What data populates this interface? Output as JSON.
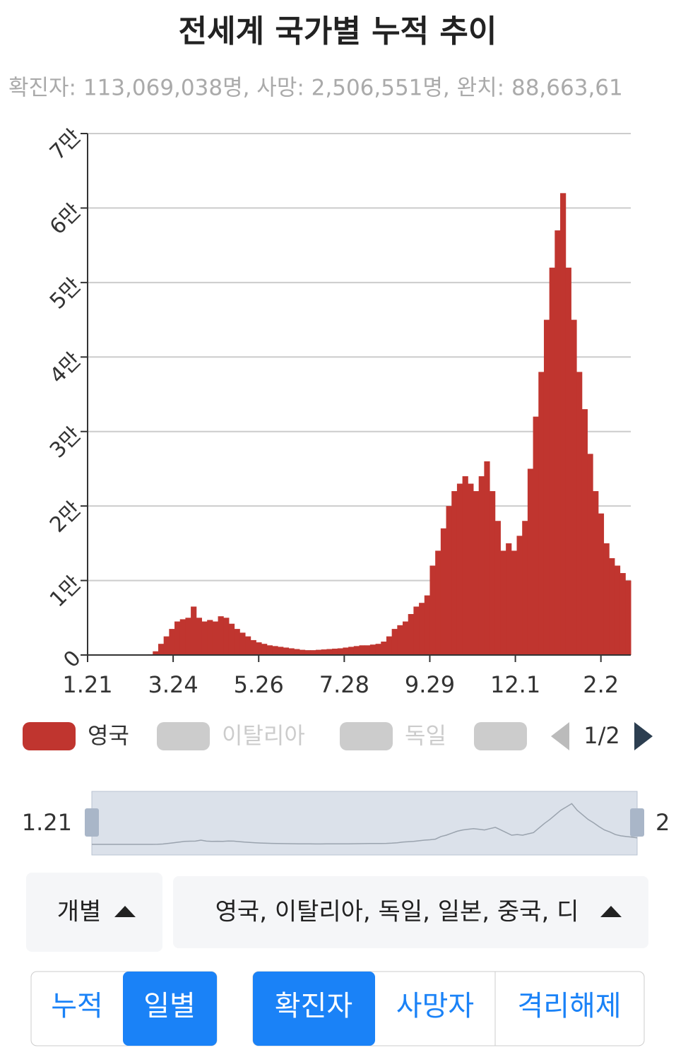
{
  "chart_data": {
    "type": "bar",
    "title": "전세계 국가별 누적 추이",
    "subtitle": "확진자: 113,069,038명, 사망: 2,506,551명, 완치: 88,663,61",
    "x": [
      0,
      4,
      8,
      12,
      16,
      20,
      24,
      28,
      32,
      36,
      40,
      44,
      48,
      52,
      56,
      60,
      64,
      68,
      72,
      76,
      80,
      84,
      88,
      92,
      96,
      100,
      104,
      108,
      112,
      116,
      120,
      124,
      128,
      132,
      136,
      140,
      144,
      148,
      152,
      156,
      160,
      164,
      168,
      172,
      176,
      180,
      184,
      188,
      192,
      196,
      200,
      204,
      208,
      212,
      216,
      220,
      224,
      228,
      232,
      236,
      240,
      244,
      248,
      252,
      256,
      260,
      264,
      268,
      272,
      276,
      280,
      284,
      288,
      292,
      296,
      300,
      304,
      308,
      312,
      316,
      320,
      324,
      328,
      332,
      336,
      340,
      344,
      348,
      352,
      356,
      360,
      364,
      368,
      372,
      376,
      380,
      384,
      388,
      392,
      396,
      400
    ],
    "series": [
      {
        "name": "영국",
        "color": "#c0352f",
        "values": [
          0,
          0,
          0,
          0,
          0,
          0,
          0,
          0,
          0,
          0,
          0,
          50,
          100,
          500,
          1500,
          2500,
          3500,
          4500,
          4800,
          5000,
          6500,
          5000,
          4500,
          4700,
          4500,
          5200,
          5000,
          4200,
          3500,
          3000,
          2500,
          2000,
          1700,
          1500,
          1300,
          1200,
          1100,
          1000,
          900,
          800,
          700,
          650,
          650,
          700,
          750,
          800,
          850,
          900,
          1000,
          1100,
          1200,
          1300,
          1300,
          1400,
          1500,
          1800,
          2500,
          3500,
          4000,
          4500,
          5500,
          6500,
          7000,
          8000,
          12000,
          14000,
          17000,
          20000,
          22000,
          23000,
          24000,
          23000,
          22000,
          24000,
          26000,
          22000,
          18000,
          14000,
          15000,
          14000,
          16000,
          18000,
          25000,
          32000,
          38000,
          45000,
          52000,
          57000,
          62000,
          52000,
          45000,
          38000,
          33000,
          27000,
          22000,
          19000,
          15000,
          13000,
          12000,
          11000,
          10000
        ]
      }
    ],
    "xlim": [
      0,
      400
    ],
    "xticks": [
      {
        "value": 0,
        "label": "1.21"
      },
      {
        "value": 63,
        "label": "3.24"
      },
      {
        "value": 126,
        "label": "5.26"
      },
      {
        "value": 189,
        "label": "7.28"
      },
      {
        "value": 252,
        "label": "9.29"
      },
      {
        "value": 315,
        "label": "12.1"
      },
      {
        "value": 378,
        "label": "2.2"
      }
    ],
    "ylim": [
      0,
      70000
    ],
    "yticks": [
      0,
      {
        "value": 10000,
        "label": "1만"
      },
      {
        "value": 20000,
        "label": "2만"
      },
      {
        "value": 30000,
        "label": "3만"
      },
      {
        "value": 40000,
        "label": "4만"
      },
      {
        "value": 50000,
        "label": "5만"
      },
      {
        "value": 60000,
        "label": "6만"
      },
      {
        "value": 70000,
        "label": "7만"
      }
    ],
    "grid": true,
    "legend_items": [
      {
        "name": "영국",
        "color": "#c0352f"
      },
      {
        "name": "이탈리아",
        "color": "#cccccc"
      },
      {
        "name": "독일",
        "color": "#cccccc"
      },
      {
        "name": null,
        "color": "#cccccc"
      }
    ],
    "legend_page": "1/2",
    "navigator": {
      "start": "1.21",
      "end": "2"
    }
  },
  "controls": {
    "mode_select": "개별",
    "country_select": "영국, 이탈리아, 독일, 일본, 중국, 디",
    "range_buttons": [
      "누적",
      "일별"
    ],
    "metric_buttons": [
      "확진자",
      "사망자",
      "격리해제"
    ]
  }
}
